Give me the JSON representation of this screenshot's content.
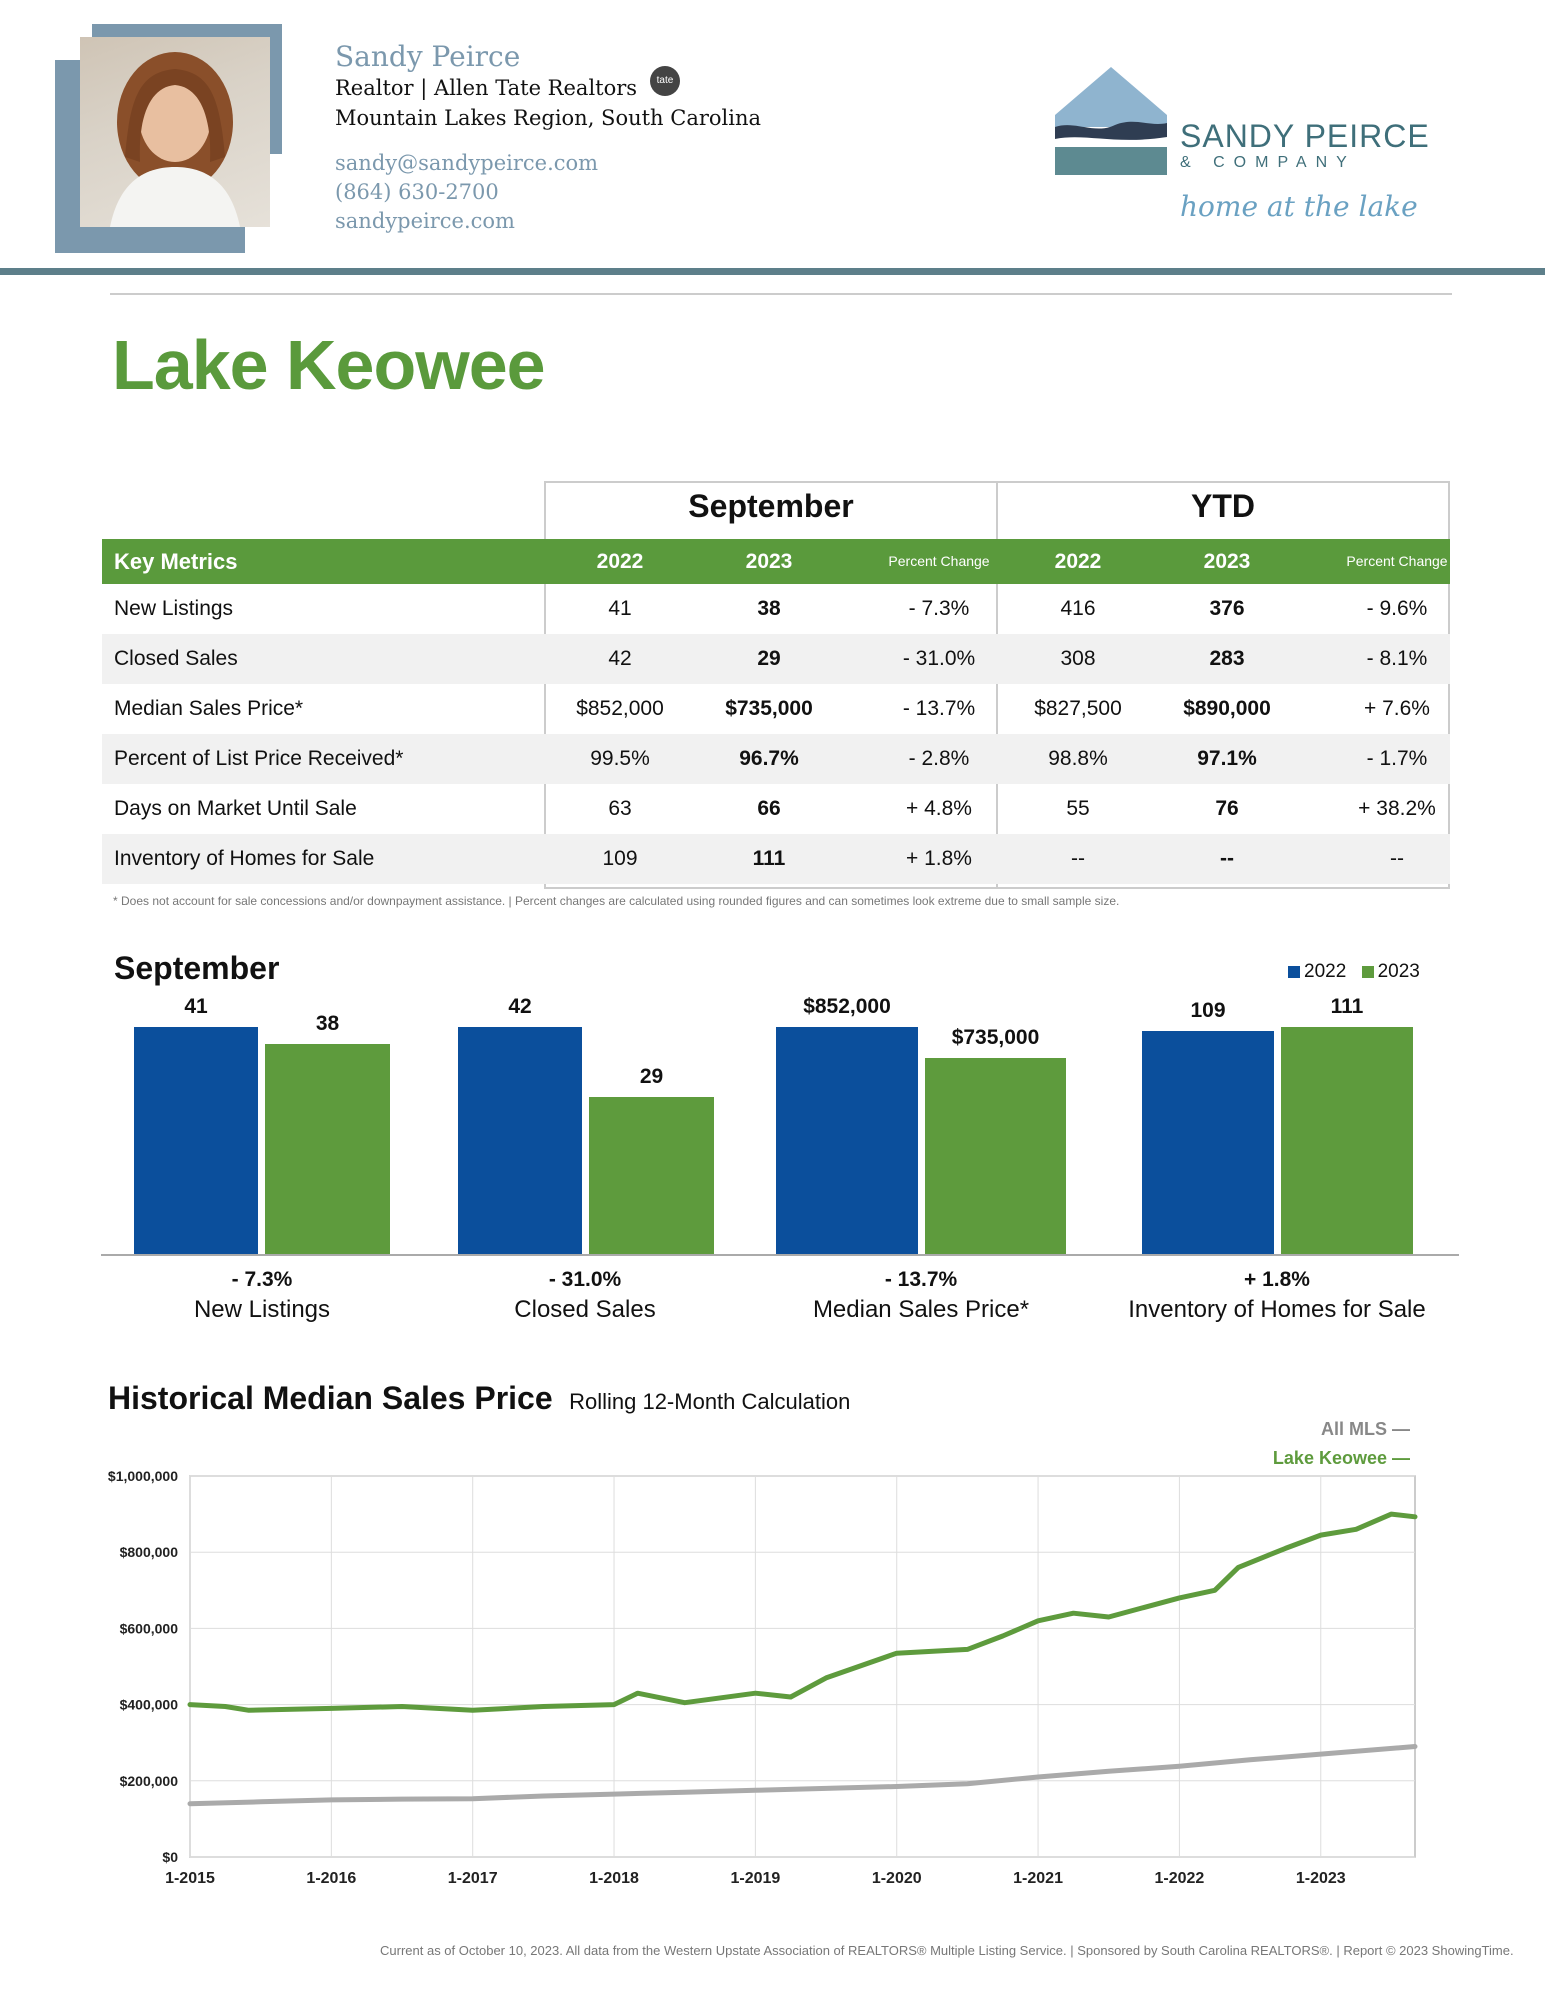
{
  "agent": {
    "name": "Sandy Peirce",
    "title_line": "Realtor  | Allen Tate Realtors",
    "badge": "tate",
    "region": "Mountain Lakes Region, South Carolina",
    "email": "sandy@sandypeirce.com",
    "phone": "(864) 630-2700",
    "website": "sandypeirce.com"
  },
  "logo": {
    "company_line1": "SANDY PEIRCE",
    "company_line2": "& COMPANY",
    "tagline": "home at the lake"
  },
  "page_title": "Lake Keowee",
  "table": {
    "group1": "September",
    "group2": "YTD",
    "headers": {
      "metric": "Key Metrics",
      "y1": "2022",
      "y2": "2023",
      "pct": "Percent Change",
      "y3": "2022",
      "y4": "2023",
      "pct2": "Percent Change"
    },
    "rows": [
      {
        "label": "New Listings",
        "s22": "41",
        "s23": "38",
        "schg": "- 7.3%",
        "y22": "416",
        "y23": "376",
        "ychg": "- 9.6%"
      },
      {
        "label": "Closed Sales",
        "s22": "42",
        "s23": "29",
        "schg": "- 31.0%",
        "y22": "308",
        "y23": "283",
        "ychg": "- 8.1%"
      },
      {
        "label": "Median Sales Price*",
        "s22": "$852,000",
        "s23": "$735,000",
        "schg": "- 13.7%",
        "y22": "$827,500",
        "y23": "$890,000",
        "ychg": "+ 7.6%"
      },
      {
        "label": "Percent of List Price Received*",
        "s22": "99.5%",
        "s23": "96.7%",
        "schg": "- 2.8%",
        "y22": "98.8%",
        "y23": "97.1%",
        "ychg": "- 1.7%"
      },
      {
        "label": "Days on Market Until Sale",
        "s22": "63",
        "s23": "66",
        "schg": "+ 4.8%",
        "y22": "55",
        "y23": "76",
        "ychg": "+ 38.2%"
      },
      {
        "label": "Inventory of Homes for Sale",
        "s22": "109",
        "s23": "111",
        "schg": "+ 1.8%",
        "y22": "--",
        "y23": "--",
        "ychg": "--"
      }
    ],
    "footnote": "* Does not account for sale concessions and/or downpayment assistance.  |  Percent changes are calculated using rounded figures and can sometimes look extreme due to small sample size."
  },
  "bar_section": {
    "title": "September",
    "legend": [
      "2022",
      "2023"
    ],
    "colors": {
      "y2022": "#0b4f9c",
      "y2023": "#5e9b3d"
    }
  },
  "line_section": {
    "title": "Historical Median Sales Price",
    "subtitle": "Rolling 12-Month Calculation",
    "legend": [
      "All MLS",
      "Lake Keowee"
    ]
  },
  "chart_data": [
    {
      "type": "bar",
      "title": "September",
      "categories": [
        "New Listings",
        "Closed Sales",
        "Median Sales Price*",
        "Inventory of Homes for Sale"
      ],
      "series": [
        {
          "name": "2022",
          "values": [
            41,
            42,
            852000,
            109
          ],
          "labels": [
            "41",
            "42",
            "$852,000",
            "109"
          ]
        },
        {
          "name": "2023",
          "values": [
            38,
            29,
            735000,
            111
          ],
          "labels": [
            "38",
            "29",
            "$735,000",
            "111"
          ]
        }
      ],
      "percent_change": [
        "- 7.3%",
        "- 31.0%",
        "- 13.7%",
        "+ 1.8%"
      ]
    },
    {
      "type": "line",
      "title": "Historical Median Sales Price",
      "subtitle": "Rolling 12-Month Calculation",
      "x_ticks": [
        "1-2015",
        "1-2016",
        "1-2017",
        "1-2018",
        "1-2019",
        "1-2020",
        "1-2021",
        "1-2022",
        "1-2023"
      ],
      "y_ticks": [
        "$0",
        "$200,000",
        "$400,000",
        "$600,000",
        "$800,000",
        "$1,000,000"
      ],
      "ylim": [
        0,
        1000000
      ],
      "xlim": [
        "2015-01",
        "2023-09"
      ],
      "grid": true,
      "series": [
        {
          "name": "All MLS",
          "color": "#aaaaaa",
          "points": [
            [
              "2015-01",
              140000
            ],
            [
              "2015-07",
              145000
            ],
            [
              "2016-01",
              150000
            ],
            [
              "2016-07",
              152000
            ],
            [
              "2017-01",
              153000
            ],
            [
              "2017-07",
              160000
            ],
            [
              "2018-01",
              165000
            ],
            [
              "2018-07",
              170000
            ],
            [
              "2019-01",
              175000
            ],
            [
              "2019-07",
              180000
            ],
            [
              "2020-01",
              185000
            ],
            [
              "2020-07",
              192000
            ],
            [
              "2021-01",
              210000
            ],
            [
              "2021-07",
              225000
            ],
            [
              "2022-01",
              238000
            ],
            [
              "2022-07",
              255000
            ],
            [
              "2023-01",
              270000
            ],
            [
              "2023-09",
              290000
            ]
          ]
        },
        {
          "name": "Lake Keowee",
          "color": "#5e9b3d",
          "points": [
            [
              "2015-01",
              400000
            ],
            [
              "2015-04",
              395000
            ],
            [
              "2015-06",
              385000
            ],
            [
              "2016-01",
              390000
            ],
            [
              "2016-07",
              395000
            ],
            [
              "2017-01",
              385000
            ],
            [
              "2017-07",
              395000
            ],
            [
              "2018-01",
              400000
            ],
            [
              "2018-03",
              430000
            ],
            [
              "2018-07",
              405000
            ],
            [
              "2019-01",
              430000
            ],
            [
              "2019-04",
              420000
            ],
            [
              "2019-07",
              470000
            ],
            [
              "2020-01",
              535000
            ],
            [
              "2020-07",
              545000
            ],
            [
              "2020-10",
              580000
            ],
            [
              "2021-01",
              620000
            ],
            [
              "2021-04",
              640000
            ],
            [
              "2021-07",
              630000
            ],
            [
              "2022-01",
              680000
            ],
            [
              "2022-04",
              700000
            ],
            [
              "2022-06",
              760000
            ],
            [
              "2022-10",
              810000
            ],
            [
              "2023-01",
              845000
            ],
            [
              "2023-04",
              860000
            ],
            [
              "2023-07",
              900000
            ],
            [
              "2023-09",
              893000
            ]
          ]
        }
      ]
    }
  ],
  "footer": "Current as of October 10, 2023. All data from the Western Upstate Association of REALTORS® Multiple Listing Service.  |  Sponsored by South Carolina REALTORS®.  |  Report © 2023 ShowingTime."
}
